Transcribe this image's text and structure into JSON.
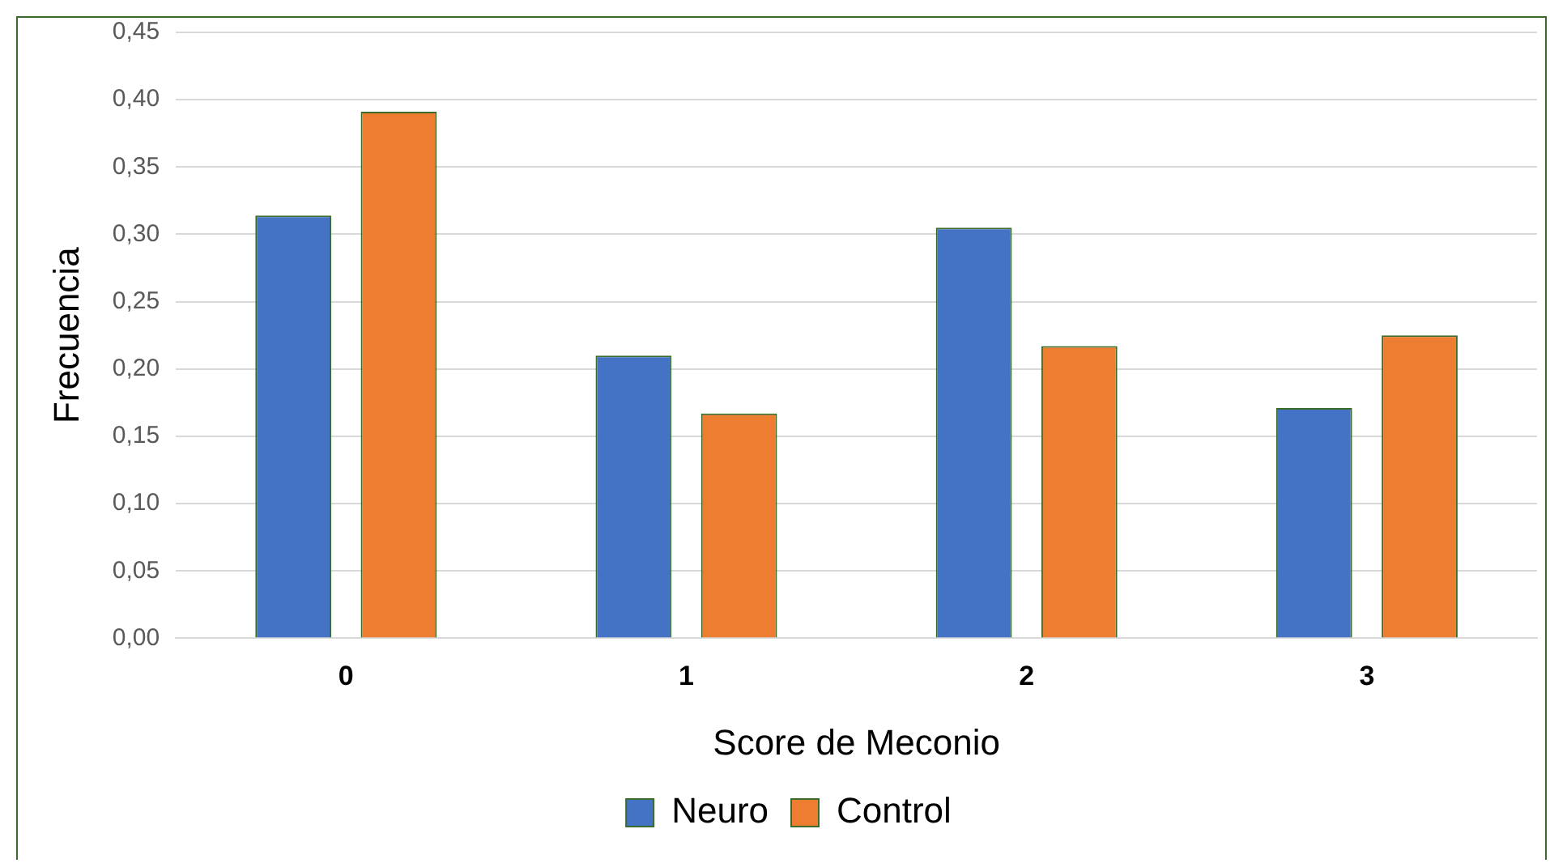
{
  "chart_data": {
    "type": "bar",
    "xlabel": "Score de Meconio",
    "ylabel": "Frecuencia",
    "categories": [
      "0",
      "1",
      "2",
      "3"
    ],
    "series": [
      {
        "name": "Neuro",
        "color": "#4472c4",
        "values": [
          0.314,
          0.21,
          0.305,
          0.171
        ]
      },
      {
        "name": "Control",
        "color": "#ed7d31",
        "values": [
          0.391,
          0.167,
          0.217,
          0.225
        ]
      }
    ],
    "ylim": [
      0,
      0.45
    ],
    "yticks": [
      {
        "value": 0,
        "label": "0,00"
      },
      {
        "value": 0.05,
        "label": "0,05"
      },
      {
        "value": 0.1,
        "label": "0,10"
      },
      {
        "value": 0.15,
        "label": "0,15"
      },
      {
        "value": 0.2,
        "label": "0,20"
      },
      {
        "value": 0.25,
        "label": "0,25"
      },
      {
        "value": 0.3,
        "label": "0,30"
      },
      {
        "value": 0.35,
        "label": "0,35"
      },
      {
        "value": 0.4,
        "label": "0,40"
      },
      {
        "value": 0.45,
        "label": "0,45"
      }
    ],
    "grid": "y",
    "legend": "bottom"
  }
}
